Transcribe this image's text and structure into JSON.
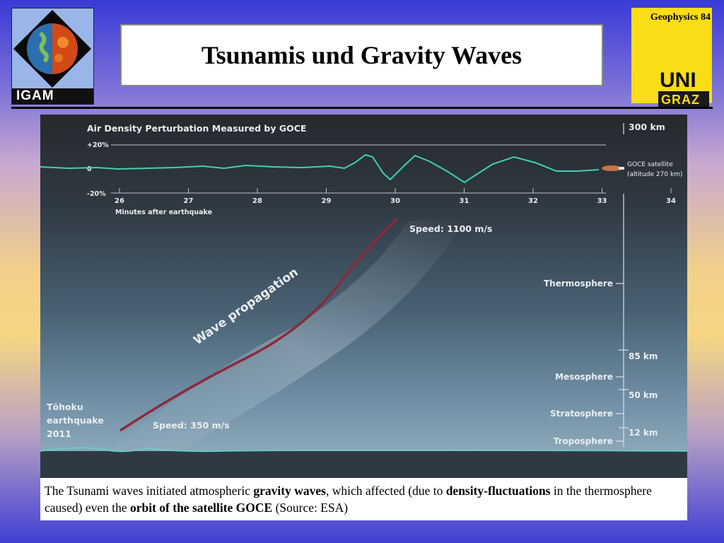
{
  "header": {
    "title": "Tsunamis und Gravity Waves",
    "slide_label": "Geophysics 84",
    "left_logo_text": "IGAM",
    "right_logo_uni": "UNI",
    "right_logo_graz": "GRAZ"
  },
  "figure": {
    "title": "Air Density Perturbation Measured by GOCE",
    "y_ticks": [
      "+20%",
      "0",
      "-20%"
    ],
    "x_ticks": [
      "26",
      "27",
      "28",
      "29",
      "30",
      "31",
      "32",
      "33",
      "34"
    ],
    "x_label": "Minutes after earthquake",
    "satellite_label_1": "GOCE satellite",
    "satellite_label_2": "(altitude 270 km)",
    "altitude_top": "300 km",
    "layers": [
      "Thermosphere",
      "Mesosphere",
      "Stratosphere",
      "Troposphere"
    ],
    "boundaries": [
      "85 km",
      "50 km",
      "12 km"
    ],
    "wave_label": "Wave propagation",
    "speed_top": "Speed: 1100 m/s",
    "speed_bottom": "Speed: 350 m/s",
    "quake_line1": "Tōhoku",
    "quake_line2": "earthquake",
    "quake_line3": "2011"
  },
  "caption": {
    "p1": "The Tsunami waves initiated atmospheric ",
    "b1": "gravity waves",
    "p2": ", which affected (due to ",
    "b2": "density-fluctuations",
    "p3": " in the thermosphere caused) even the ",
    "b3": "orbit of the satellite GOCE",
    "p4": " (Source: ESA)"
  },
  "colors": {
    "wave_line": "#8a2a3c",
    "perturbation_line": "#3fd0b4",
    "uni_yellow": "#f9dd17"
  }
}
